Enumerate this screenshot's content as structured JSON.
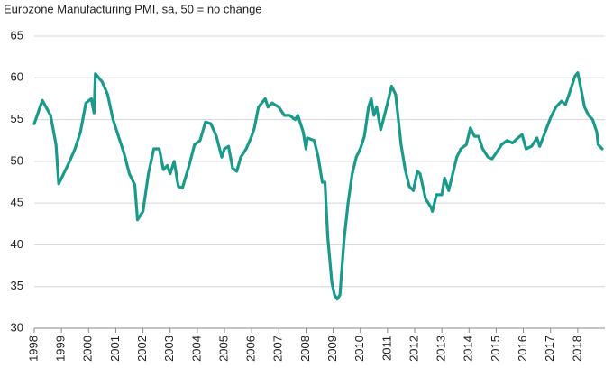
{
  "chart_data": {
    "type": "line",
    "title": "Eurozone Manufacturing PMI, sa, 50 = no change",
    "color": "#1b9a8b",
    "grid": true,
    "xlim": [
      1998,
      2019
    ],
    "ylim": [
      30,
      65
    ],
    "yticks": [
      30,
      35,
      40,
      45,
      50,
      55,
      60,
      65
    ],
    "xticks": [
      1998,
      1999,
      2000,
      2001,
      2002,
      2003,
      2004,
      2005,
      2006,
      2007,
      2008,
      2009,
      2010,
      2011,
      2012,
      2013,
      2014,
      2015,
      2016,
      2017,
      2018
    ],
    "x": [
      1998.0,
      1998.3,
      1998.6,
      1998.8,
      1998.9,
      1999.3,
      1999.5,
      1999.7,
      1999.9,
      2000.1,
      2000.2,
      2000.25,
      2000.5,
      2000.7,
      2000.9,
      2001.1,
      2001.3,
      2001.5,
      2001.7,
      2001.8,
      2002.0,
      2002.2,
      2002.4,
      2002.6,
      2002.75,
      2002.9,
      2003.0,
      2003.15,
      2003.3,
      2003.45,
      2003.7,
      2003.9,
      2004.1,
      2004.3,
      2004.5,
      2004.7,
      2004.9,
      2005.0,
      2005.15,
      2005.3,
      2005.45,
      2005.6,
      2005.8,
      2006.0,
      2006.1,
      2006.25,
      2006.5,
      2006.6,
      2006.75,
      2007.0,
      2007.2,
      2007.4,
      2007.6,
      2007.7,
      2007.9,
      2008.0,
      2008.05,
      2008.3,
      2008.45,
      2008.6,
      2008.7,
      2008.8,
      2008.95,
      2009.05,
      2009.15,
      2009.25,
      2009.4,
      2009.55,
      2009.7,
      2009.85,
      2010.0,
      2010.15,
      2010.3,
      2010.4,
      2010.5,
      2010.6,
      2010.75,
      2010.85,
      2011.0,
      2011.15,
      2011.3,
      2011.5,
      2011.65,
      2011.8,
      2011.95,
      2012.1,
      2012.2,
      2012.4,
      2012.6,
      2012.65,
      2012.8,
      2013.0,
      2013.1,
      2013.25,
      2013.4,
      2013.55,
      2013.7,
      2013.9,
      2014.05,
      2014.2,
      2014.35,
      2014.5,
      2014.7,
      2014.85,
      2015.0,
      2015.2,
      2015.4,
      2015.6,
      2015.8,
      2015.95,
      2016.1,
      2016.3,
      2016.5,
      2016.6,
      2016.8,
      2017.0,
      2017.2,
      2017.4,
      2017.55,
      2017.7,
      2017.9,
      2018.0,
      2018.1,
      2018.25,
      2018.4,
      2018.55,
      2018.7,
      2018.75,
      2018.9
    ],
    "values": [
      54.5,
      57.3,
      55.5,
      52,
      47.3,
      50,
      51.5,
      53.5,
      57,
      57.5,
      55.8,
      60.5,
      59.5,
      58,
      55,
      53,
      51,
      48.5,
      47.2,
      43,
      44,
      48.5,
      51.5,
      51.5,
      49,
      49.5,
      48.5,
      50,
      47,
      46.8,
      49.5,
      52,
      52.5,
      54.7,
      54.5,
      53,
      50.5,
      51.5,
      51.8,
      49.2,
      48.8,
      50.5,
      51.5,
      53,
      54,
      56.5,
      57.5,
      56.5,
      57,
      56.5,
      55.5,
      55.5,
      55,
      55.5,
      53.5,
      51.5,
      52.8,
      52.5,
      50.5,
      47.5,
      47.5,
      41,
      35.5,
      34,
      33.5,
      34,
      40.5,
      45,
      48.5,
      50.5,
      51.5,
      53,
      56.5,
      57.5,
      55.5,
      56.5,
      53.8,
      55,
      57,
      59,
      58,
      52,
      49,
      47,
      46.5,
      48.8,
      48.5,
      45.5,
      44.5,
      44,
      46,
      46,
      48,
      46.5,
      48.5,
      50.5,
      51.5,
      52,
      54,
      53,
      53,
      51.5,
      50.5,
      50.3,
      51,
      52,
      52.5,
      52.2,
      52.8,
      53.2,
      51.5,
      51.8,
      52.8,
      51.8,
      53.5,
      55.2,
      56.5,
      57.2,
      56.8,
      58.2,
      60.2,
      60.6,
      59,
      56.5,
      55.5,
      55,
      53.5,
      52,
      51.5
    ]
  }
}
